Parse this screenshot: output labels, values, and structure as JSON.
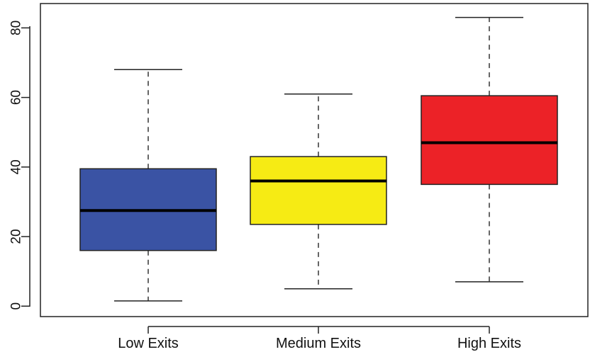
{
  "chart_data": {
    "type": "boxplot",
    "title": "",
    "xlabel": "",
    "ylabel": "",
    "ylim": [
      -3,
      87
    ],
    "y_ticks": [
      0,
      20,
      40,
      60,
      80
    ],
    "y_tick_labels": [
      "0",
      "20",
      "40",
      "60",
      "80"
    ],
    "grid": false,
    "legend": "none",
    "categories": [
      "Low Exits",
      "Medium Exits",
      "High Exits"
    ],
    "boxes": [
      {
        "category": "Low Exits",
        "min": 1.5,
        "q1": 16,
        "median": 27.5,
        "q3": 39.5,
        "max": 68,
        "color": "#3a53a4"
      },
      {
        "category": "Medium Exits",
        "min": 5,
        "q1": 23.5,
        "median": 36,
        "q3": 43,
        "max": 61,
        "color": "#f6eb14"
      },
      {
        "category": "High Exits",
        "min": 7,
        "q1": 35,
        "median": 47,
        "q3": 60.5,
        "max": 83,
        "color": "#ec2227"
      }
    ]
  }
}
